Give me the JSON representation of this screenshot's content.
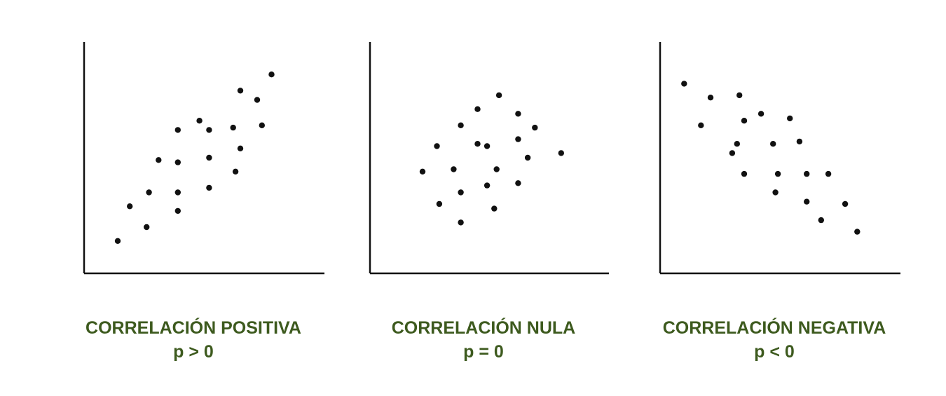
{
  "caption_color": "#3d5a1e",
  "point_color": "#111111",
  "chart_data": [
    {
      "type": "scatter",
      "title": "CORRELACIÓN POSITIVA",
      "subtitle": "p > 0",
      "xlabel": "",
      "ylabel": "",
      "xlim": [
        0,
        100
      ],
      "ylim": [
        0,
        100
      ],
      "grid": false,
      "points": [
        [
          14,
          14
        ],
        [
          19,
          29
        ],
        [
          26,
          20
        ],
        [
          27,
          35
        ],
        [
          31,
          49
        ],
        [
          39,
          27
        ],
        [
          39,
          35
        ],
        [
          39,
          62
        ],
        [
          39,
          48
        ],
        [
          52,
          37
        ],
        [
          52,
          50
        ],
        [
          48,
          66
        ],
        [
          52,
          62
        ],
        [
          62,
          63
        ],
        [
          65,
          54
        ],
        [
          63,
          44
        ],
        [
          65,
          79
        ],
        [
          72,
          75
        ],
        [
          74,
          64
        ],
        [
          78,
          86
        ]
      ]
    },
    {
      "type": "scatter",
      "title": "CORRELACIÓN NULA",
      "subtitle": "p = 0",
      "xlabel": "",
      "ylabel": "",
      "xlim": [
        0,
        100
      ],
      "ylim": [
        0,
        100
      ],
      "grid": false,
      "points": [
        [
          22,
          44
        ],
        [
          29,
          30
        ],
        [
          28,
          55
        ],
        [
          35,
          45
        ],
        [
          38,
          22
        ],
        [
          38,
          35
        ],
        [
          38,
          64
        ],
        [
          45,
          71
        ],
        [
          45,
          56
        ],
        [
          49,
          38
        ],
        [
          49,
          55
        ],
        [
          53,
          45
        ],
        [
          52,
          28
        ],
        [
          54,
          77
        ],
        [
          62,
          69
        ],
        [
          62,
          58
        ],
        [
          62,
          39
        ],
        [
          66,
          50
        ],
        [
          69,
          63
        ],
        [
          80,
          52
        ]
      ]
    },
    {
      "type": "scatter",
      "title": "CORRELACIÓN NEGATIVA",
      "subtitle": "p < 0",
      "xlabel": "",
      "ylabel": "",
      "xlim": [
        0,
        100
      ],
      "ylim": [
        0,
        100
      ],
      "grid": false,
      "points": [
        [
          10,
          82
        ],
        [
          17,
          64
        ],
        [
          21,
          76
        ],
        [
          30,
          52
        ],
        [
          32,
          56
        ],
        [
          35,
          43
        ],
        [
          35,
          66
        ],
        [
          33,
          77
        ],
        [
          42,
          69
        ],
        [
          47,
          56
        ],
        [
          48,
          35
        ],
        [
          49,
          43
        ],
        [
          54,
          67
        ],
        [
          58,
          57
        ],
        [
          61,
          31
        ],
        [
          61,
          43
        ],
        [
          67,
          23
        ],
        [
          70,
          43
        ],
        [
          77,
          30
        ],
        [
          82,
          18
        ]
      ]
    }
  ]
}
